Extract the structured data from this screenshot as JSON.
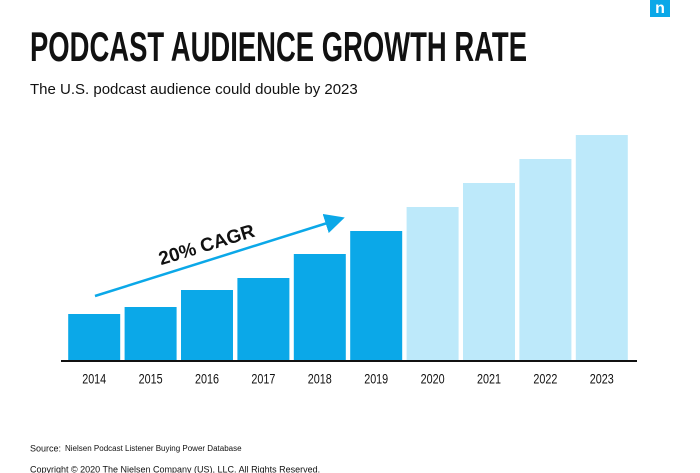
{
  "chart_data": {
    "type": "bar",
    "title": "PODCAST AUDIENCE GROWTH RATE",
    "subtitle": "The U.S. podcast audience could double by 2023",
    "annotation": "20% CAGR",
    "categories": [
      "2014",
      "2015",
      "2016",
      "2017",
      "2018",
      "2019",
      "2020",
      "2021",
      "2022",
      "2023"
    ],
    "values": [
      46,
      53,
      70,
      82,
      106,
      129,
      153,
      177,
      201,
      225
    ],
    "colors": [
      "#0ba8e8",
      "#0ba8e8",
      "#0ba8e8",
      "#0ba8e8",
      "#0ba8e8",
      "#0ba8e8",
      "#bde9fa",
      "#bde9fa",
      "#bde9fa",
      "#bde9fa"
    ],
    "ylim": [
      0,
      225
    ],
    "source_label": "Source:",
    "source": "Nielsen Podcast Listener Buying Power Database",
    "copyright": "Copyright © 2020 The Nielsen Company (US), LLC. All Rights Reserved.",
    "logo": "n"
  }
}
